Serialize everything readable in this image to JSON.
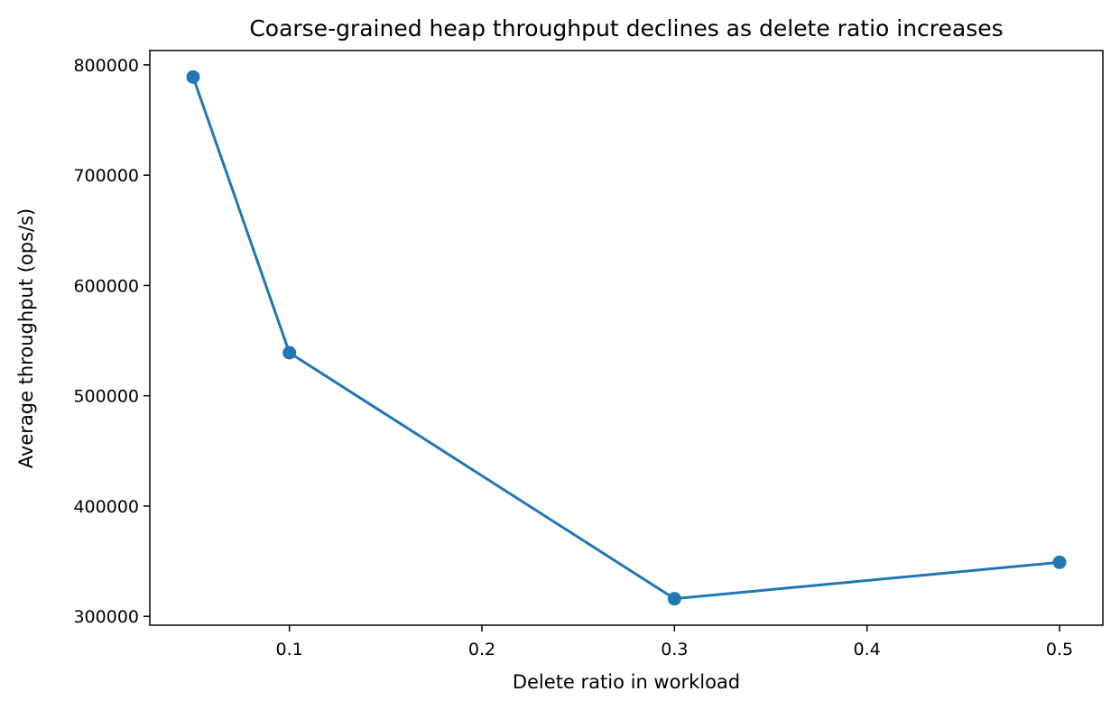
{
  "chart_data": {
    "type": "line",
    "title": "Coarse-grained heap throughput declines as delete ratio increases",
    "xlabel": "Delete ratio in workload",
    "ylabel": "Average throughput (ops/s)",
    "x_ticks": [
      0.1,
      0.2,
      0.3,
      0.4,
      0.5
    ],
    "x_tick_labels": [
      "0.1",
      "0.2",
      "0.3",
      "0.4",
      "0.5"
    ],
    "y_ticks": [
      300000,
      400000,
      500000,
      600000,
      700000,
      800000
    ],
    "y_tick_labels": [
      "300000",
      "400000",
      "500000",
      "600000",
      "700000",
      "800000"
    ],
    "xlim": [
      0.0275,
      0.5225
    ],
    "ylim": [
      292000,
      813000
    ],
    "grid": false,
    "series": [
      {
        "x": [
          0.05,
          0.1,
          0.3,
          0.5
        ],
        "y": [
          789000,
          539000,
          316000,
          349000
        ],
        "color": "#1f77b4",
        "marker": "circle"
      }
    ]
  }
}
